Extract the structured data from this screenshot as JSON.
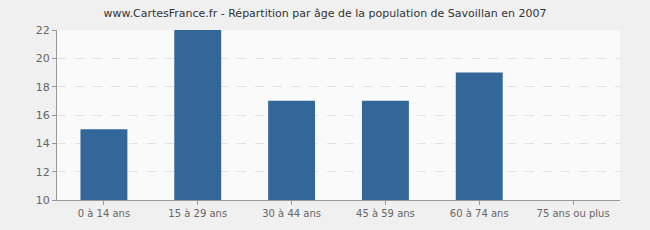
{
  "chart_data": {
    "type": "bar",
    "title": "www.CartesFrance.fr - Répartition par âge de la population de Savoillan en 2007",
    "categories": [
      "0 à 14 ans",
      "15 à 29 ans",
      "30 à 44 ans",
      "45 à 59 ans",
      "60 à 74 ans",
      "75 ans ou plus"
    ],
    "values": [
      15,
      22,
      17,
      17,
      19,
      10
    ],
    "color": "#336699",
    "ylim": [
      10,
      22
    ],
    "yticks": [
      10,
      12,
      14,
      16,
      18,
      20,
      22
    ],
    "grid": true
  }
}
